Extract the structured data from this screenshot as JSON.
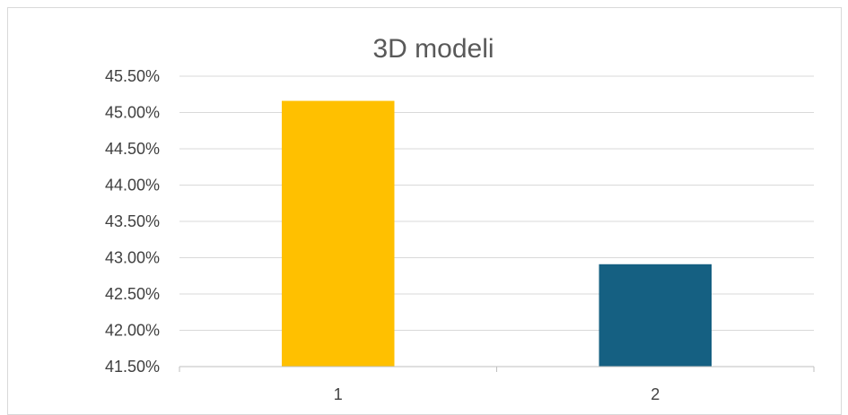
{
  "chart_data": {
    "type": "bar",
    "title": "3D modeli",
    "xlabel": "",
    "ylabel": "",
    "categories": [
      "1",
      "2"
    ],
    "values": [
      45.16,
      42.91
    ],
    "value_unit": "%",
    "ylim": [
      41.5,
      45.5
    ],
    "ytick_step": 0.5,
    "ytick_labels": [
      "41.50%",
      "42.00%",
      "42.50%",
      "43.00%",
      "43.50%",
      "44.00%",
      "44.50%",
      "45.00%",
      "45.50%"
    ],
    "bar_colors": [
      "#FFC000",
      "#156082"
    ],
    "grid": true,
    "legend": "none"
  }
}
